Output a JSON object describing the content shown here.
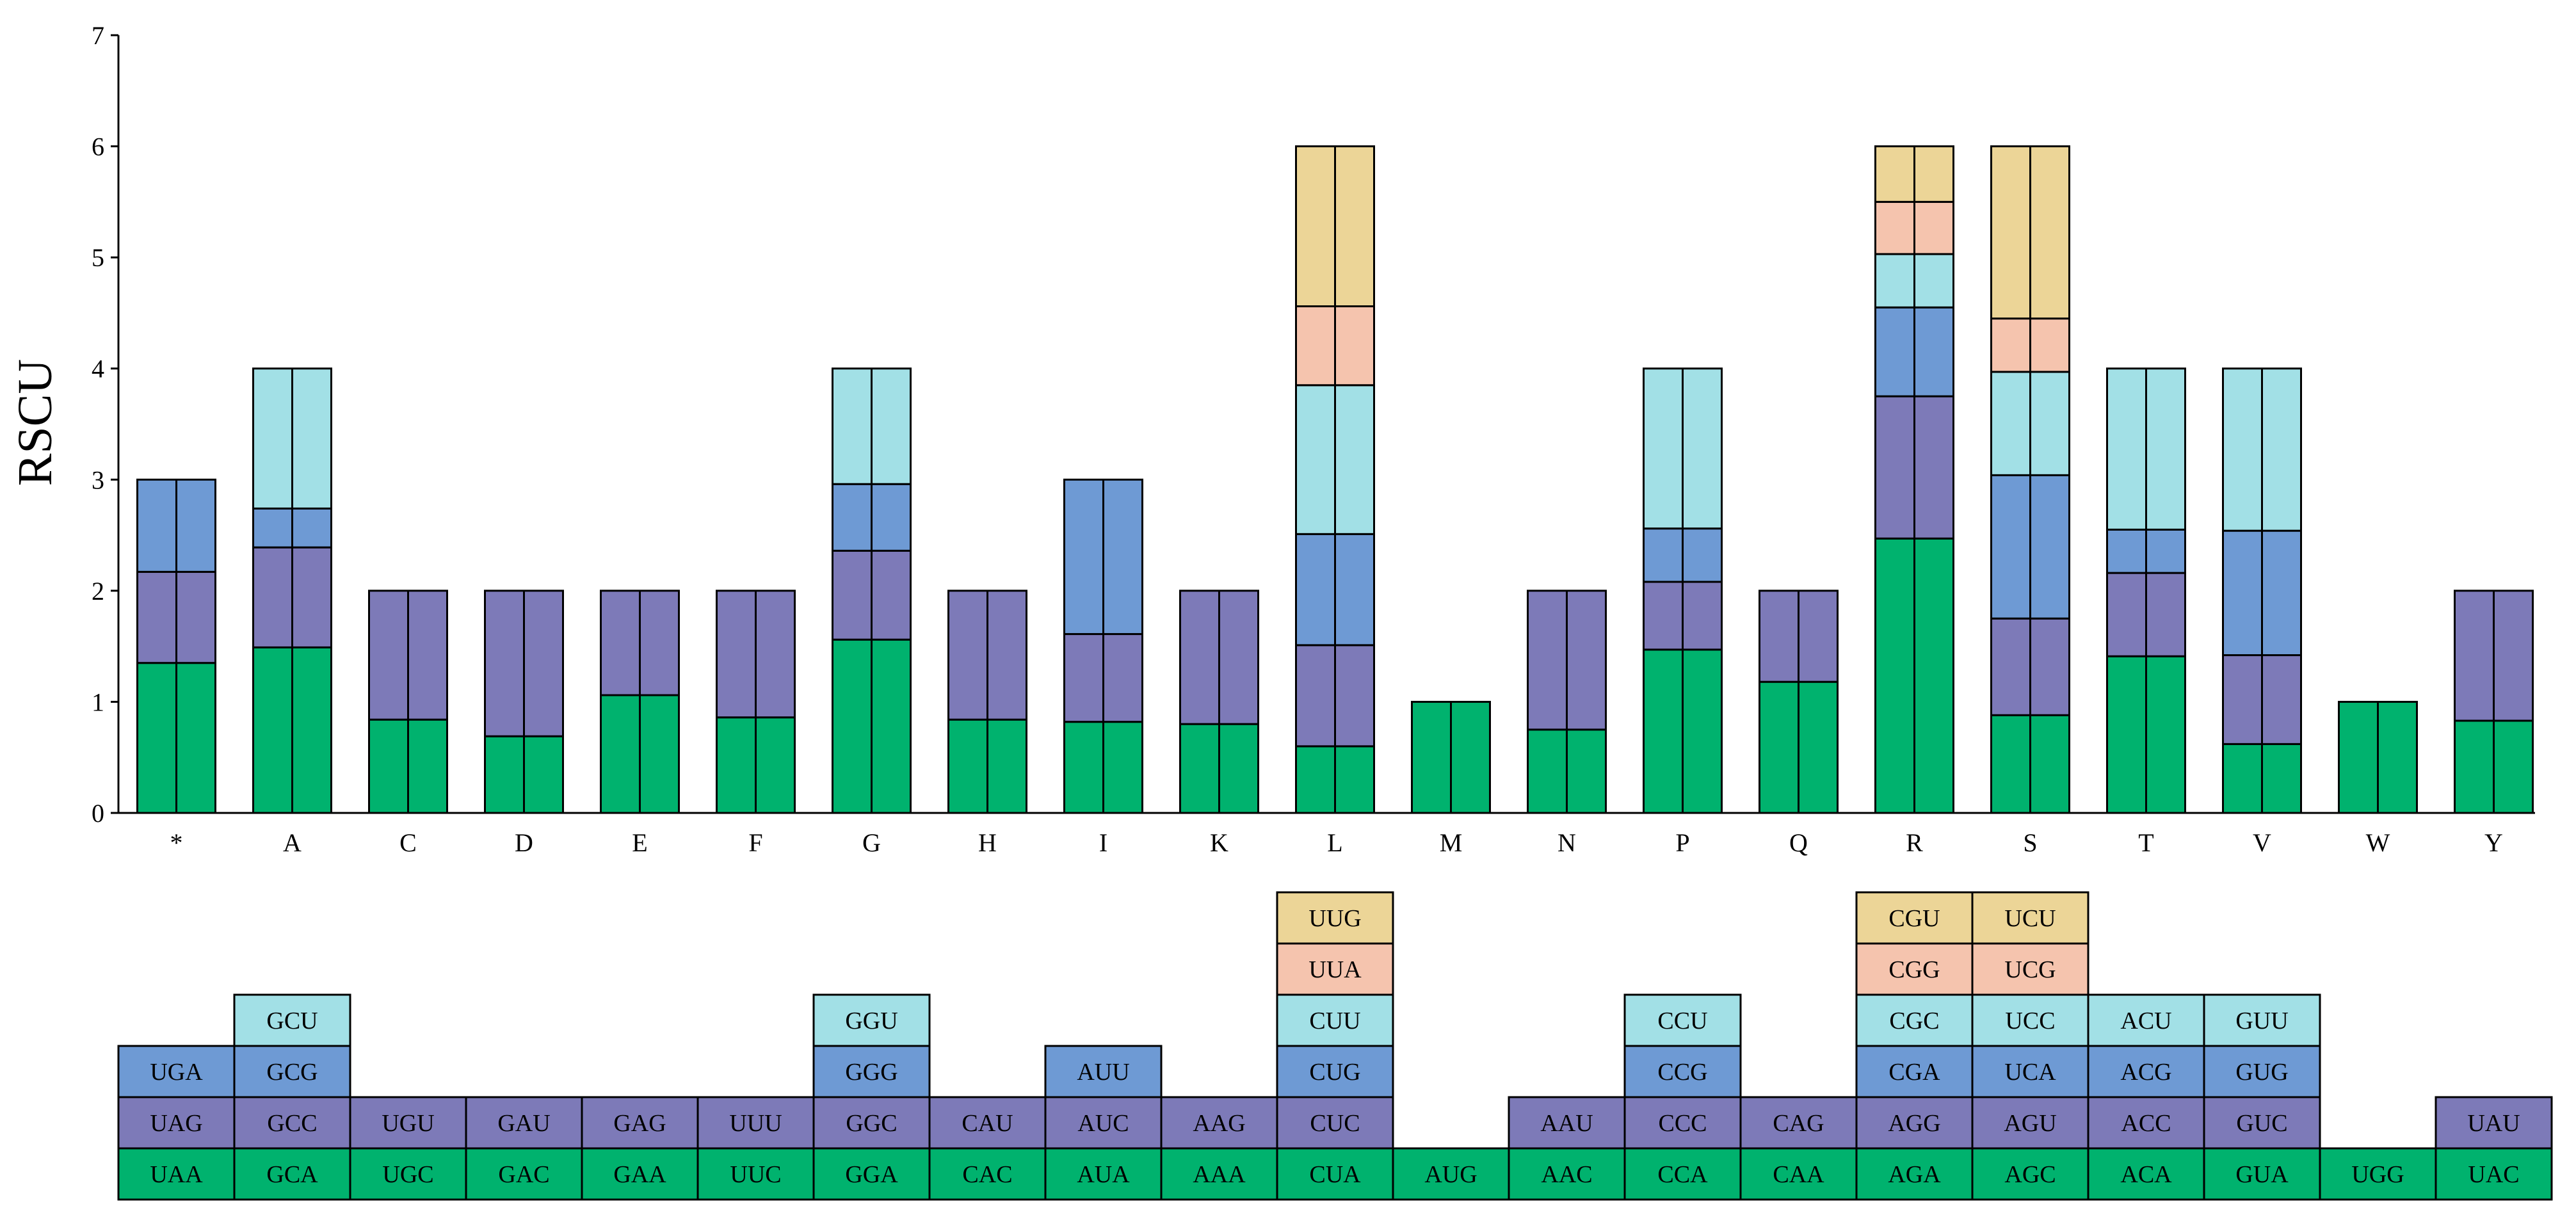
{
  "chart_data": {
    "type": "bar",
    "stacked": true,
    "ylabel": "RSCU",
    "xlabel": "",
    "title": "",
    "ylim": [
      0,
      7
    ],
    "yticks": [
      0,
      1,
      2,
      3,
      4,
      5,
      6,
      7
    ],
    "grid": false,
    "layer_colors": [
      "#00b26e",
      "#7d7ab8",
      "#6e9ad4",
      "#a2e0e6",
      "#f5c4ae",
      "#ecd597"
    ],
    "categories": [
      "*",
      "A",
      "C",
      "D",
      "E",
      "F",
      "G",
      "H",
      "I",
      "K",
      "L",
      "M",
      "N",
      "P",
      "Q",
      "R",
      "S",
      "T",
      "V",
      "W",
      "Y"
    ],
    "codon_stacks": [
      {
        "amino_acid": "*",
        "codons": [
          "UAA",
          "UAG",
          "UGA"
        ],
        "values": [
          1.35,
          0.82,
          0.83
        ]
      },
      {
        "amino_acid": "A",
        "codons": [
          "GCA",
          "GCC",
          "GCG",
          "GCU"
        ],
        "values": [
          1.49,
          0.9,
          0.35,
          1.26
        ]
      },
      {
        "amino_acid": "C",
        "codons": [
          "UGC",
          "UGU"
        ],
        "values": [
          0.84,
          1.16
        ]
      },
      {
        "amino_acid": "D",
        "codons": [
          "GAC",
          "GAU"
        ],
        "values": [
          0.69,
          1.31
        ]
      },
      {
        "amino_acid": "E",
        "codons": [
          "GAA",
          "GAG"
        ],
        "values": [
          1.06,
          0.94
        ]
      },
      {
        "amino_acid": "F",
        "codons": [
          "UUC",
          "UUU"
        ],
        "values": [
          0.86,
          1.14
        ]
      },
      {
        "amino_acid": "G",
        "codons": [
          "GGA",
          "GGC",
          "GGG",
          "GGU"
        ],
        "values": [
          1.56,
          0.8,
          0.6,
          1.04
        ]
      },
      {
        "amino_acid": "H",
        "codons": [
          "CAC",
          "CAU"
        ],
        "values": [
          0.84,
          1.16
        ]
      },
      {
        "amino_acid": "I",
        "codons": [
          "AUA",
          "AUC",
          "AUU"
        ],
        "values": [
          0.82,
          0.79,
          1.39
        ]
      },
      {
        "amino_acid": "K",
        "codons": [
          "AAA",
          "AAG"
        ],
        "values": [
          0.8,
          1.2
        ]
      },
      {
        "amino_acid": "L",
        "codons": [
          "CUA",
          "CUC",
          "CUG",
          "CUU",
          "UUA",
          "UUG"
        ],
        "values": [
          0.6,
          0.91,
          1.0,
          1.34,
          0.71,
          1.44
        ]
      },
      {
        "amino_acid": "M",
        "codons": [
          "AUG"
        ],
        "values": [
          1.0
        ]
      },
      {
        "amino_acid": "N",
        "codons": [
          "AAC",
          "AAU"
        ],
        "values": [
          0.75,
          1.25
        ]
      },
      {
        "amino_acid": "P",
        "codons": [
          "CCA",
          "CCC",
          "CCG",
          "CCU"
        ],
        "values": [
          1.47,
          0.61,
          0.48,
          1.44
        ]
      },
      {
        "amino_acid": "Q",
        "codons": [
          "CAA",
          "CAG"
        ],
        "values": [
          1.18,
          0.82
        ]
      },
      {
        "amino_acid": "R",
        "codons": [
          "AGA",
          "AGG",
          "CGA",
          "CGC",
          "CGG",
          "CGU"
        ],
        "values": [
          2.47,
          1.28,
          0.8,
          0.48,
          0.47,
          0.5
        ]
      },
      {
        "amino_acid": "S",
        "codons": [
          "AGC",
          "AGU",
          "UCA",
          "UCC",
          "UCG",
          "UCU"
        ],
        "values": [
          0.88,
          0.87,
          1.29,
          0.93,
          0.48,
          1.55
        ]
      },
      {
        "amino_acid": "T",
        "codons": [
          "ACA",
          "ACC",
          "ACG",
          "ACU"
        ],
        "values": [
          1.41,
          0.75,
          0.39,
          1.45
        ]
      },
      {
        "amino_acid": "V",
        "codons": [
          "GUA",
          "GUC",
          "GUG",
          "GUU"
        ],
        "values": [
          0.62,
          0.8,
          1.12,
          1.46
        ]
      },
      {
        "amino_acid": "W",
        "codons": [
          "UGG"
        ],
        "values": [
          1.0
        ]
      },
      {
        "amino_acid": "Y",
        "codons": [
          "UAC",
          "UAU"
        ],
        "values": [
          0.83,
          1.17
        ]
      }
    ]
  }
}
